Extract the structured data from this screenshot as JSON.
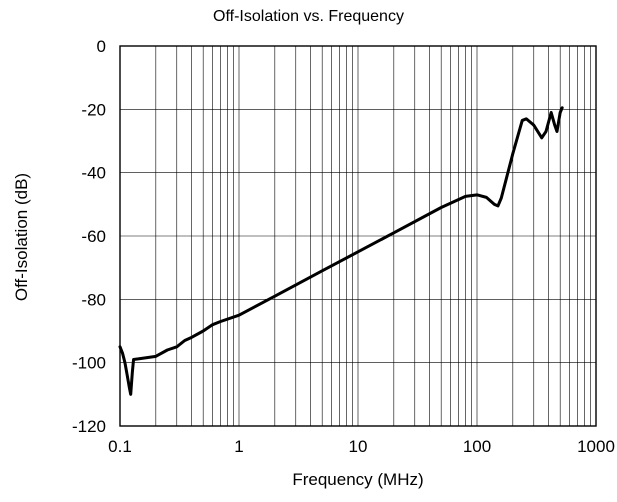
{
  "chart_data": {
    "type": "line",
    "title": "Off-Isolation vs. Frequency",
    "xlabel": "Frequency (MHz)",
    "ylabel": "Off-Isolation (dB)",
    "xscale": "log",
    "xlim": [
      0.1,
      1000
    ],
    "ylim": [
      -120,
      0
    ],
    "x_ticks": [
      0.1,
      1,
      10,
      100,
      1000
    ],
    "x_tick_labels": [
      "0.1",
      "1",
      "10",
      "100",
      "1000"
    ],
    "y_ticks": [
      0,
      -20,
      -40,
      -60,
      -80,
      -100,
      -120
    ],
    "y_tick_labels": [
      "0",
      "-20",
      "-40",
      "-60",
      "-80",
      "-100",
      "-120"
    ],
    "grid": true,
    "legend": "none",
    "series": [
      {
        "color": "#000000",
        "points": [
          [
            0.1,
            -95
          ],
          [
            0.105,
            -97
          ],
          [
            0.11,
            -100
          ],
          [
            0.115,
            -104
          ],
          [
            0.12,
            -108
          ],
          [
            0.123,
            -110
          ],
          [
            0.127,
            -103
          ],
          [
            0.13,
            -99
          ],
          [
            0.15,
            -98.7
          ],
          [
            0.2,
            -98
          ],
          [
            0.25,
            -96
          ],
          [
            0.3,
            -95
          ],
          [
            0.35,
            -93
          ],
          [
            0.4,
            -92
          ],
          [
            0.5,
            -90
          ],
          [
            0.6,
            -88
          ],
          [
            0.7,
            -87
          ],
          [
            1.0,
            -85
          ],
          [
            2.0,
            -79
          ],
          [
            5.0,
            -71
          ],
          [
            10.0,
            -65
          ],
          [
            20.0,
            -59
          ],
          [
            50.0,
            -51
          ],
          [
            80.0,
            -47.5
          ],
          [
            100.0,
            -47
          ],
          [
            120.0,
            -47.8
          ],
          [
            140.0,
            -50
          ],
          [
            150.0,
            -50.5
          ],
          [
            160.0,
            -48
          ],
          [
            200.0,
            -34
          ],
          [
            240.0,
            -23.5
          ],
          [
            260.0,
            -23
          ],
          [
            300.0,
            -25
          ],
          [
            350.0,
            -29
          ],
          [
            380.0,
            -27
          ],
          [
            420.0,
            -21
          ],
          [
            450.0,
            -25
          ],
          [
            470.0,
            -27
          ],
          [
            500.0,
            -21
          ],
          [
            520.0,
            -19.5
          ]
        ]
      }
    ]
  }
}
